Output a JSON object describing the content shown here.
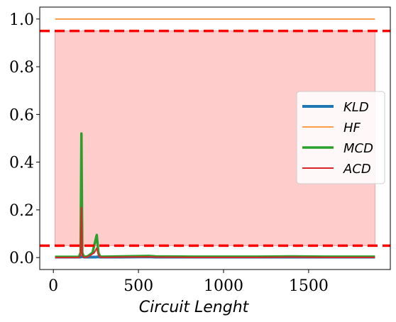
{
  "chart_data": {
    "type": "line",
    "xlabel": "Circuit Lenght",
    "ylabel": "",
    "xlim": [
      -80,
      1980
    ],
    "ylim": [
      -0.05,
      1.05
    ],
    "x_ticks": [
      0,
      500,
      1000,
      1500
    ],
    "x_tick_labels": [
      "0",
      "500",
      "1000",
      "1500"
    ],
    "y_ticks": [
      0.0,
      0.2,
      0.4,
      0.6,
      0.8,
      1.0
    ],
    "y_tick_labels": [
      "0.0",
      "0.2",
      "0.4",
      "0.6",
      "0.8",
      "1.0"
    ],
    "grid": false,
    "legend_position": "center-right",
    "shaded_band": {
      "x": [
        10,
        1890
      ],
      "y": [
        0.05,
        0.95
      ],
      "color": "#ffcccc"
    },
    "threshold_lines": [
      {
        "y": 0.95,
        "color": "#ff0000",
        "style": "dashed"
      },
      {
        "y": 0.05,
        "color": "#ff0000",
        "style": "dashed"
      }
    ],
    "series": [
      {
        "name": "KLD",
        "color": "#1f77b4",
        "width": 4,
        "x": [
          10,
          150,
          160,
          170,
          180,
          250,
          262,
          275,
          300,
          400,
          560,
          600,
          800,
          1000,
          1200,
          1400,
          1600,
          1890
        ],
        "y": [
          0.002,
          0.002,
          0.002,
          0.004,
          0.002,
          0.002,
          0.003,
          0.002,
          0.002,
          0.002,
          0.003,
          0.002,
          0.002,
          0.002,
          0.002,
          0.002,
          0.002,
          0.002
        ]
      },
      {
        "name": "HF",
        "color": "#ff7f0e",
        "width": 1.5,
        "x": [
          10,
          1890
        ],
        "y": [
          1.0,
          1.0
        ]
      },
      {
        "name": "MCD",
        "color": "#2ca02c",
        "width": 3.5,
        "x": [
          10,
          100,
          150,
          160,
          165,
          170,
          180,
          200,
          230,
          255,
          265,
          275,
          300,
          400,
          560,
          600,
          800,
          1000,
          1200,
          1400,
          1600,
          1890
        ],
        "y": [
          0.003,
          0.003,
          0.003,
          0.02,
          0.52,
          0.02,
          0.003,
          0.005,
          0.02,
          0.095,
          0.02,
          0.004,
          0.004,
          0.005,
          0.007,
          0.005,
          0.004,
          0.004,
          0.004,
          0.005,
          0.004,
          0.004
        ]
      },
      {
        "name": "ACD",
        "color": "#d62728",
        "width": 2,
        "x": [
          10,
          100,
          150,
          160,
          165,
          170,
          180,
          200,
          240,
          255,
          265,
          275,
          300,
          400,
          560,
          600,
          800,
          1000,
          1200,
          1400,
          1600,
          1890
        ],
        "y": [
          0.0,
          0.0,
          0.0,
          0.01,
          0.21,
          0.01,
          0.0,
          0.002,
          0.02,
          0.04,
          0.01,
          0.002,
          0.001,
          0.002,
          0.003,
          0.002,
          0.001,
          0.001,
          0.001,
          0.002,
          0.001,
          0.001
        ]
      }
    ]
  }
}
